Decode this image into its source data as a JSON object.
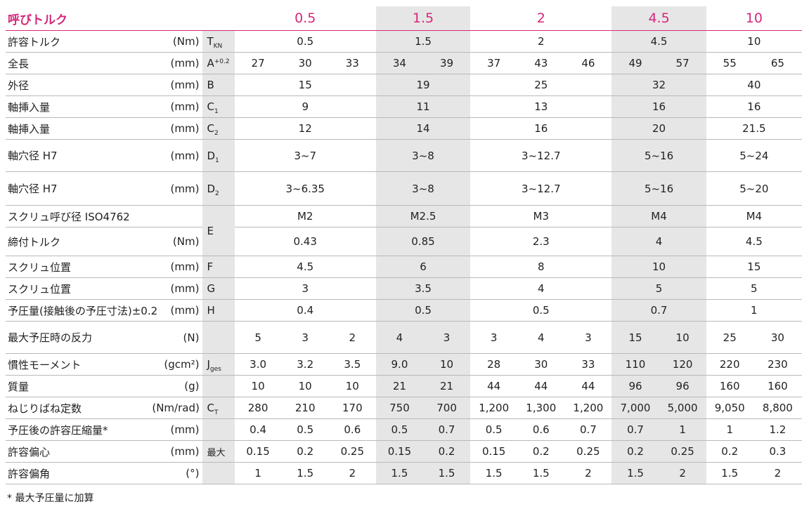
{
  "header": {
    "label": "呼びトルク",
    "sizes": [
      "0.5",
      "1.5",
      "2",
      "4.5",
      "10"
    ]
  },
  "rows": {
    "torque": {
      "name": "許容トルク",
      "unit": "(Nm)",
      "sym": "T",
      "sub": "KN",
      "vals": [
        "0.5",
        "1.5",
        "2",
        "4.5",
        "10"
      ]
    },
    "length": {
      "name": "全長",
      "unit": "(mm)",
      "sym": "A",
      "sup": "+0.2",
      "vals": [
        "27",
        "30",
        "33",
        "34",
        "39",
        "37",
        "43",
        "46",
        "49",
        "57",
        "55",
        "65"
      ]
    },
    "outer": {
      "name": "外径",
      "unit": "(mm)",
      "sym": "B",
      "vals": [
        "15",
        "19",
        "25",
        "32",
        "40"
      ]
    },
    "insert1": {
      "name": "軸挿入量",
      "unit": "(mm)",
      "sym": "C",
      "sub": "1",
      "vals": [
        "9",
        "11",
        "13",
        "16",
        "16"
      ]
    },
    "insert2": {
      "name": "軸挿入量",
      "unit": "(mm)",
      "sym": "C",
      "sub": "2",
      "vals": [
        "12",
        "14",
        "16",
        "20",
        "21.5"
      ]
    },
    "bore1": {
      "name": "軸穴径 H7",
      "unit": "(mm)",
      "sym": "D",
      "sub": "1",
      "vals": [
        "3~7",
        "3~8",
        "3~12.7",
        "5~16",
        "5~24"
      ]
    },
    "bore2": {
      "name": "軸穴径 H7",
      "unit": "(mm)",
      "sym": "D",
      "sub": "2",
      "vals": [
        "3~6.35",
        "3~8",
        "3~12.7",
        "5~16",
        "5~20"
      ]
    },
    "screw": {
      "name": "スクリュ呼び径 ISO4762",
      "unit": "",
      "vals": [
        "M2",
        "M2.5",
        "M3",
        "M4",
        "M4"
      ]
    },
    "tighten": {
      "name": "締付トルク",
      "unit": "(Nm)",
      "sym": "E",
      "vals": [
        "0.43",
        "0.85",
        "2.3",
        "4",
        "4.5"
      ]
    },
    "screwpos1": {
      "name": "スクリュ位置",
      "unit": "(mm)",
      "sym": "F",
      "vals": [
        "4.5",
        "6",
        "8",
        "10",
        "15"
      ]
    },
    "screwpos2": {
      "name": "スクリュ位置",
      "unit": "(mm)",
      "sym": "G",
      "vals": [
        "3",
        "3.5",
        "4",
        "5",
        "5"
      ]
    },
    "preload": {
      "name": "予圧量(接触後の予圧寸法)±0.2",
      "unit": "(mm)",
      "sym": "H",
      "vals": [
        "0.4",
        "0.5",
        "0.5",
        "0.7",
        "1"
      ]
    },
    "reaction": {
      "name": "最大予圧時の反力",
      "unit": "(N)",
      "vals": [
        "5",
        "3",
        "2",
        "4",
        "3",
        "3",
        "4",
        "3",
        "15",
        "10",
        "25",
        "30"
      ]
    },
    "inertia": {
      "name": "慣性モーメント",
      "unit": "(gcm²)",
      "sym": "J",
      "sub": "ges",
      "vals": [
        "3.0",
        "3.2",
        "3.5",
        "9.0",
        "10",
        "28",
        "30",
        "33",
        "110",
        "120",
        "220",
        "230"
      ]
    },
    "mass": {
      "name": "質量",
      "unit": "(g)",
      "vals": [
        "10",
        "10",
        "10",
        "21",
        "21",
        "44",
        "44",
        "44",
        "96",
        "96",
        "160",
        "160"
      ]
    },
    "spring": {
      "name": "ねじりばね定数",
      "unit": "(Nm/rad)",
      "sym": "C",
      "sub": "T",
      "vals": [
        "280",
        "210",
        "170",
        "750",
        "700",
        "1,200",
        "1,300",
        "1,200",
        "7,000",
        "5,000",
        "9,050",
        "8,800"
      ]
    },
    "compress": {
      "name": "予圧後の許容圧縮量*",
      "unit": "(mm)",
      "vals": [
        "0.4",
        "0.5",
        "0.6",
        "0.5",
        "0.7",
        "0.5",
        "0.6",
        "0.7",
        "0.7",
        "1",
        "1",
        "1.2"
      ]
    },
    "offset": {
      "name": "許容偏心",
      "unit": "(mm)",
      "sym": "最大",
      "vals": [
        "0.15",
        "0.2",
        "0.25",
        "0.15",
        "0.2",
        "0.15",
        "0.2",
        "0.25",
        "0.2",
        "0.25",
        "0.2",
        "0.3"
      ]
    },
    "angle": {
      "name": "許容偏角",
      "unit": "(°)",
      "vals": [
        "1",
        "1.5",
        "2",
        "1.5",
        "1.5",
        "1.5",
        "1.5",
        "2",
        "1.5",
        "2",
        "1.5",
        "2"
      ]
    }
  },
  "footnote": "* 最大予圧量に加算"
}
